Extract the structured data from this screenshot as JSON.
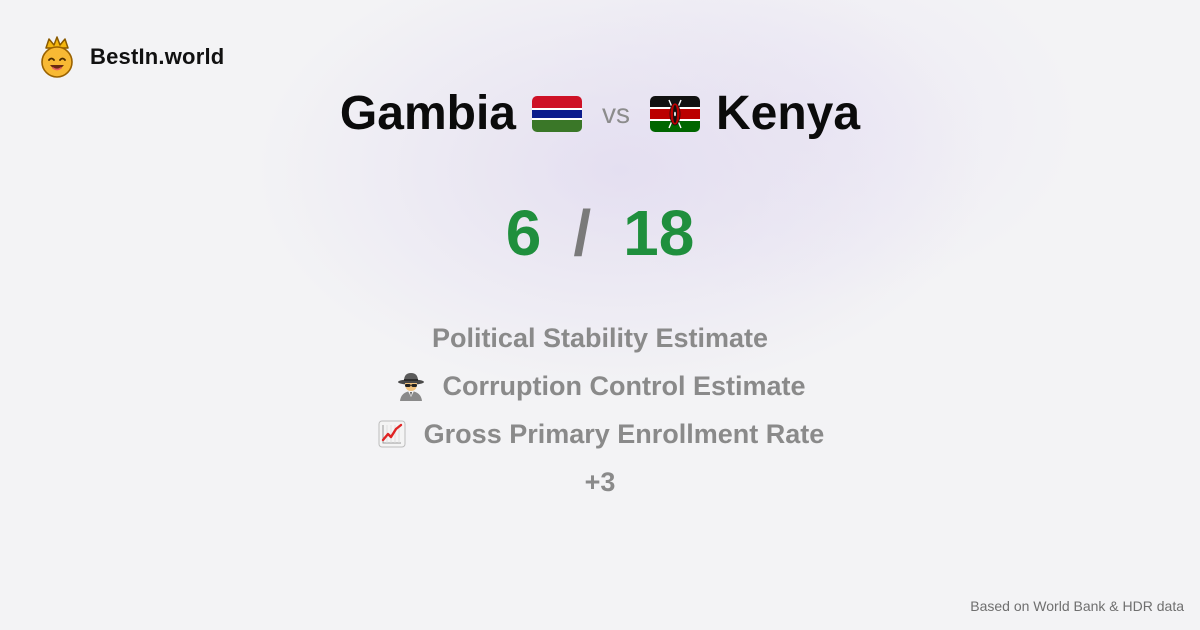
{
  "brand": {
    "name": "BestIn.world",
    "logo_icon": "crowned-smiley-icon"
  },
  "comparison": {
    "left_country": "Gambia",
    "left_flag": "gambia-flag-icon",
    "vs_label": "vs",
    "right_country": "Kenya",
    "right_flag": "kenya-flag-icon"
  },
  "score": {
    "left": "6",
    "separator": "/",
    "right": "18"
  },
  "metrics": [
    {
      "label": "Political Stability Estimate",
      "icon": ""
    },
    {
      "label": "Corruption Control Estimate",
      "icon": "spy-icon"
    },
    {
      "label": "Gross Primary Enrollment Rate",
      "icon": "chart-increasing-icon"
    }
  ],
  "more_label": "+3",
  "footer": {
    "source": "Based on World Bank & HDR data"
  },
  "colors": {
    "score": "#1f8f3d",
    "muted": "#8a8a8a",
    "title": "#0b0b0b"
  }
}
